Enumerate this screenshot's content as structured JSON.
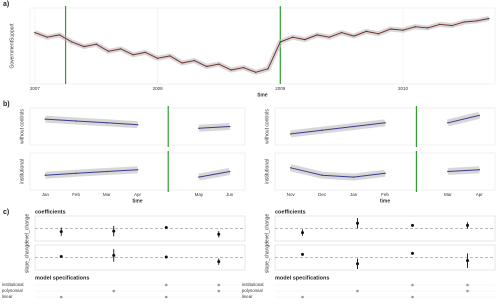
{
  "chart_data": [
    {
      "type": "line",
      "panel": "a)",
      "ylabel": "GovernmentSupport",
      "xlabel": "time",
      "x": [
        2007.0,
        2007.1,
        2007.2,
        2007.3,
        2007.4,
        2007.5,
        2007.6,
        2007.7,
        2007.8,
        2007.9,
        2008.0,
        2008.1,
        2008.2,
        2008.3,
        2008.4,
        2008.5,
        2008.6,
        2008.7,
        2008.8,
        2008.9,
        2009.0,
        2009.1,
        2009.2,
        2009.3,
        2009.4,
        2009.5,
        2009.6,
        2009.7,
        2009.8,
        2009.9,
        2010.0,
        2010.1,
        2010.2,
        2010.3,
        2010.4,
        2010.5,
        2010.6,
        2010.7
      ],
      "values": [
        74,
        70,
        72,
        66,
        62,
        64,
        58,
        60,
        55,
        57,
        52,
        54,
        48,
        50,
        45,
        47,
        42,
        44,
        40,
        43,
        66,
        70,
        68,
        72,
        70,
        74,
        71,
        75,
        73,
        77,
        76,
        79,
        78,
        81,
        80,
        83,
        84,
        86
      ],
      "color": "#7a2323",
      "band_color": "#bdbdbd",
      "xlim": [
        2006.96,
        2010.75
      ],
      "xticks": [
        2007,
        2008,
        2009,
        2010
      ],
      "ylim": [
        30,
        95
      ],
      "vlines": [
        2007.25,
        2009.0
      ],
      "vline_color": "#2ca02c",
      "grid": true
    },
    {
      "type": "facet-line",
      "panel": "b)",
      "xlabel": "time",
      "categories": [
        "Jan",
        "Feb",
        "Mar",
        "Apr",
        null,
        "May",
        "Jun"
      ],
      "facets": [
        {
          "ylabel": "without controls",
          "values": [
            0.7,
            0.65,
            0.6,
            0.55,
            null,
            0.45,
            0.5
          ]
        },
        {
          "ylabel": "institutional",
          "values": [
            0.4,
            0.45,
            0.5,
            0.55,
            null,
            0.35,
            0.5
          ]
        }
      ],
      "color": "#3b3b8f",
      "band_color": "#bdbdbd",
      "vline_color": "#2ca02c",
      "ylim": [
        0,
        1
      ]
    },
    {
      "type": "facet-line",
      "xlabel": "time",
      "categories": [
        "Nov",
        "Dec",
        "Jan",
        "Feb",
        null,
        "Mar",
        "Apr"
      ],
      "facets": [
        {
          "ylabel": "without controls",
          "values": [
            0.3,
            0.4,
            0.5,
            0.6,
            null,
            0.6,
            0.8
          ]
        },
        {
          "ylabel": "institutional",
          "values": [
            0.6,
            0.4,
            0.35,
            0.45,
            null,
            0.5,
            0.55
          ]
        }
      ],
      "color": "#3b3b8f",
      "band_color": "#bdbdbd",
      "vline_color": "#2ca02c",
      "ylim": [
        0,
        1
      ]
    },
    {
      "type": "coef",
      "panel": "c)",
      "title": "coefficients",
      "facets": [
        {
          "ylabel": "level_change",
          "values": [
            -0.3,
            -0.25,
            0.1,
            -0.55
          ],
          "errors": [
            0.4,
            0.5,
            0.1,
            0.3
          ]
        },
        {
          "ylabel": "slope_change",
          "values": [
            0.1,
            0.2,
            0.05,
            -0.4
          ],
          "errors": [
            0.1,
            0.6,
            0.05,
            0.3
          ]
        }
      ],
      "ylim": [
        -1.2,
        1.2
      ],
      "color": "#111111",
      "specs_title": "model specifications",
      "specs": [
        "institutional",
        "polynomial",
        "linear"
      ],
      "spec_used": [
        [
          false,
          false,
          true
        ],
        [
          false,
          true,
          false
        ],
        [
          true,
          false,
          true
        ],
        [
          true,
          true,
          false
        ]
      ]
    },
    {
      "type": "coef",
      "title": "coefficients",
      "facets": [
        {
          "ylabel": "level_change",
          "values": [
            -0.4,
            0.5,
            0.3,
            0.3
          ],
          "errors": [
            0.3,
            0.5,
            0.1,
            0.3
          ]
        },
        {
          "ylabel": "slope_change",
          "values": [
            0.3,
            -0.6,
            0.4,
            -0.3
          ],
          "errors": [
            0.1,
            0.5,
            0.1,
            0.7
          ]
        }
      ],
      "ylim": [
        -1.2,
        1.2
      ],
      "color": "#111111",
      "specs_title": "model specifications",
      "specs": [
        "institutional",
        "polynomial",
        "linear"
      ],
      "spec_used": [
        [
          false,
          false,
          true
        ],
        [
          false,
          true,
          false
        ],
        [
          true,
          false,
          true
        ],
        [
          true,
          true,
          false
        ]
      ]
    }
  ]
}
